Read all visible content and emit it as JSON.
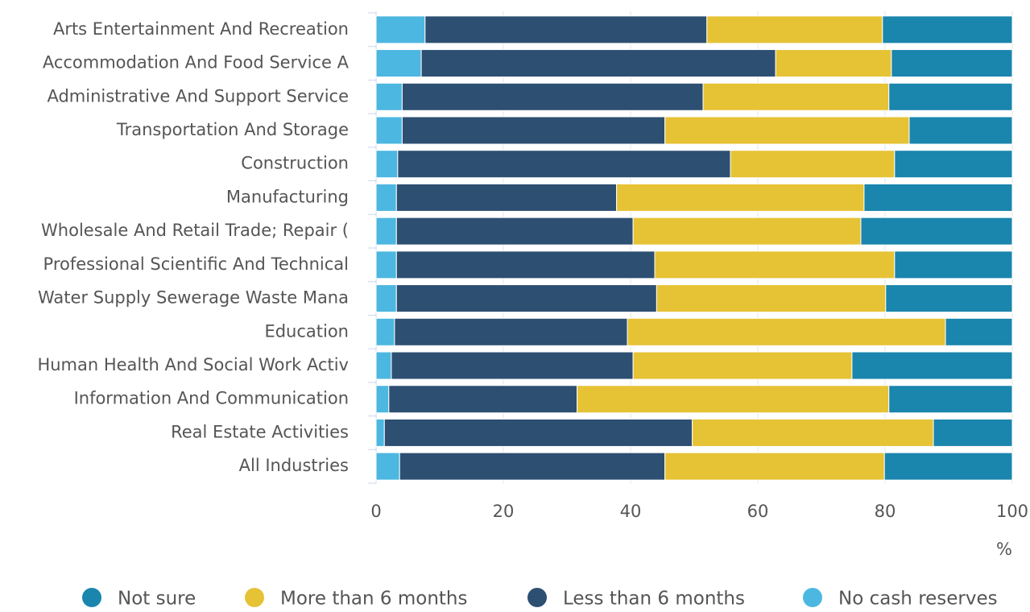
{
  "chart_data": {
    "type": "stacked_barh",
    "categories": [
      "Arts Entertainment And Recreation",
      "Accommodation And Food Service A",
      "Administrative And Support Service",
      "Transportation And Storage",
      "Construction",
      "Manufacturing",
      "Wholesale And Retail Trade; Repair (",
      "Professional Scientific And Technical",
      "Water Supply Sewerage Waste Mana",
      "Education",
      "Human Health And Social Work Activ",
      "Information And Communication",
      "Real Estate Activities",
      "All Industries"
    ],
    "series": [
      {
        "name": "Not sure",
        "color": "#1a85ad",
        "values": [
          20.4,
          19.0,
          19.4,
          16.2,
          18.5,
          23.3,
          23.8,
          18.5,
          19.9,
          10.5,
          25.2,
          19.4,
          12.4,
          20.1
        ]
      },
      {
        "name": "More than 6 months",
        "color": "#e6c235",
        "values": [
          27.6,
          18.2,
          29.2,
          38.4,
          25.8,
          38.9,
          35.8,
          37.7,
          36.0,
          50.0,
          34.4,
          49.0,
          37.9,
          34.5
        ]
      },
      {
        "name": "Less than 6 months",
        "color": "#2d4f72",
        "values": [
          44.3,
          55.7,
          47.3,
          41.3,
          52.3,
          34.6,
          37.2,
          40.6,
          40.9,
          36.6,
          38.0,
          29.6,
          48.4,
          41.7
        ]
      },
      {
        "name": "No cash reserves",
        "color": "#4cb7e0",
        "values": [
          7.7,
          7.1,
          4.1,
          4.1,
          3.4,
          3.2,
          3.2,
          3.2,
          3.2,
          2.9,
          2.4,
          2.0,
          1.3,
          3.7
        ]
      }
    ],
    "x_label": "%",
    "xlim": [
      0,
      100
    ],
    "xticks": [
      0,
      20,
      40,
      60,
      80,
      100
    ],
    "grid": true
  }
}
